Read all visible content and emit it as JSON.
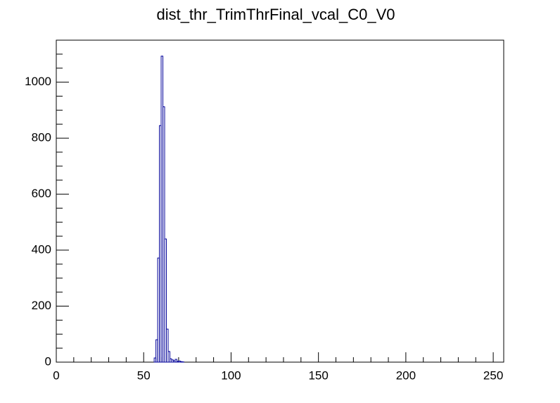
{
  "chart_data": {
    "type": "histogram",
    "title": "dist_thr_TrimThrFinal_vcal_C0_V0",
    "bins": [
      56,
      57,
      58,
      59,
      60,
      61,
      62,
      63,
      64,
      65,
      66,
      67,
      68,
      69,
      70,
      71,
      72,
      73
    ],
    "values": [
      15,
      80,
      372,
      845,
      1093,
      912,
      440,
      118,
      38,
      12,
      8,
      5,
      10,
      3,
      4,
      2,
      1
    ],
    "color": "#000099",
    "xlim": [
      0,
      256
    ],
    "xticks": [
      0,
      50,
      100,
      150,
      200,
      250
    ],
    "ylim": [
      0,
      1150
    ],
    "yticks": [
      0,
      200,
      400,
      600,
      800,
      1000
    ]
  }
}
